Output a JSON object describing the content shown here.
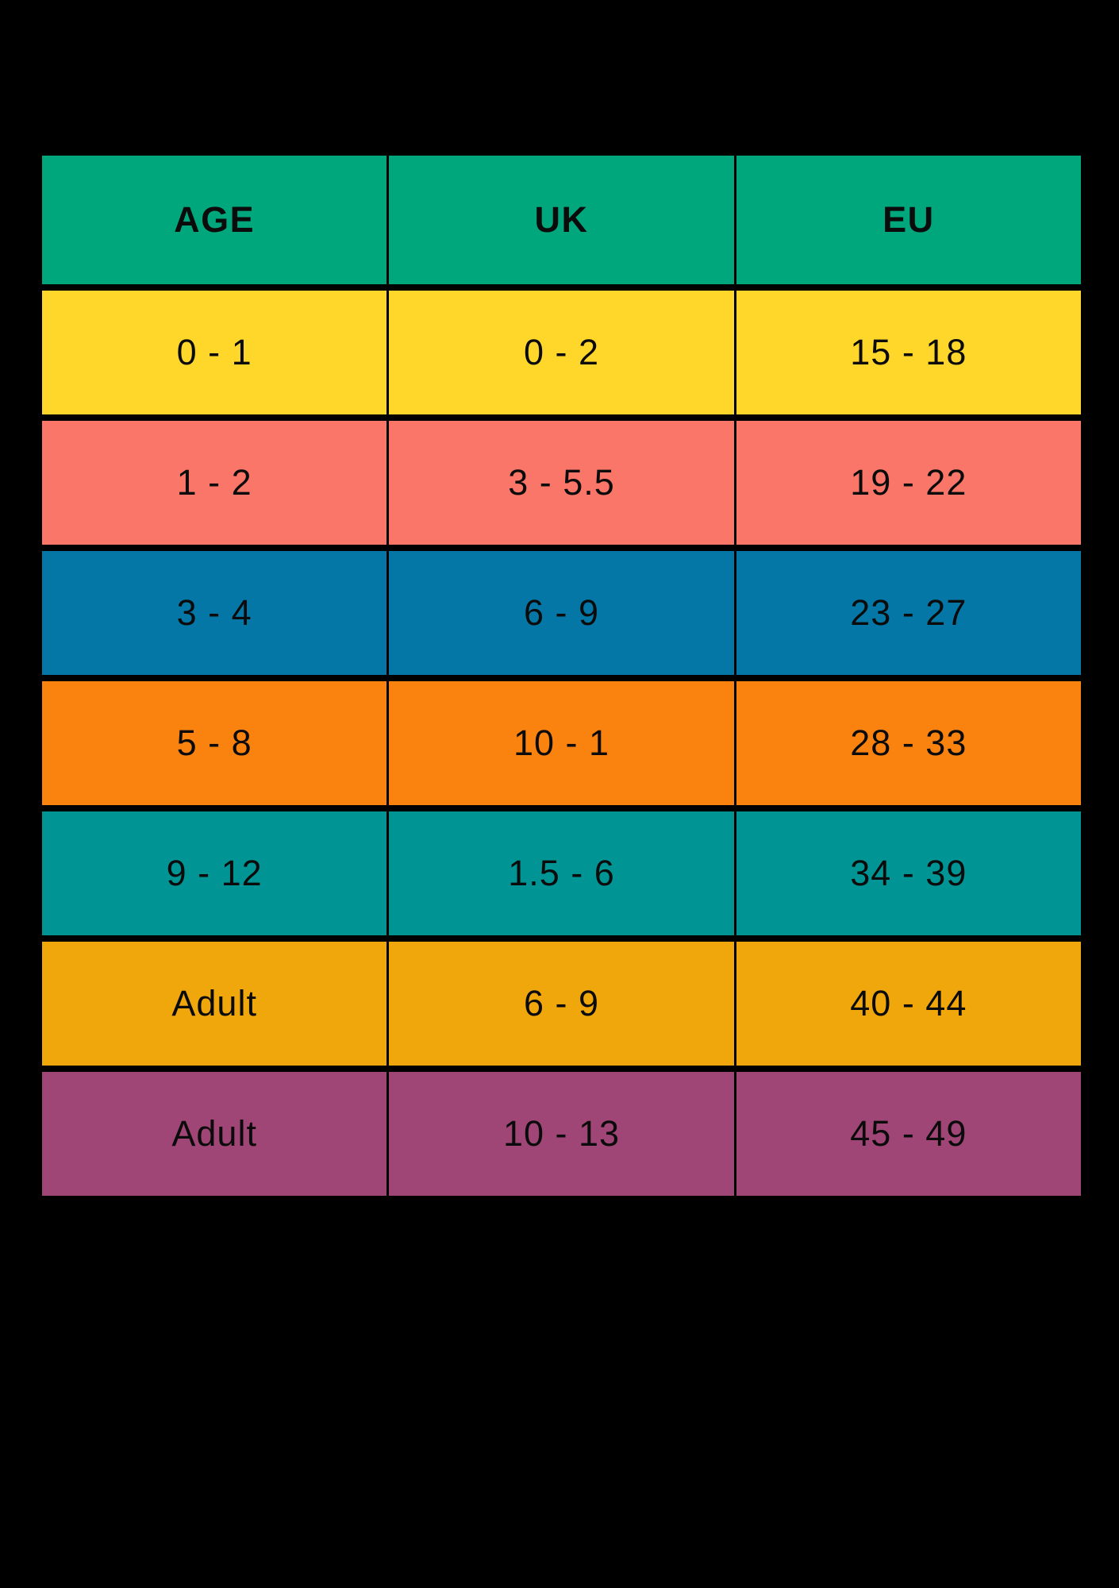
{
  "page": {
    "background_color": "#000000"
  },
  "chart_data": {
    "type": "table",
    "columns": [
      "AGE",
      "UK",
      "EU"
    ],
    "header_color": "#00A77D",
    "text_color": "#0B0B0B",
    "rows": [
      {
        "cells": [
          "0 - 1",
          "0 - 2",
          "15 - 18"
        ],
        "color": "#FFD72B"
      },
      {
        "cells": [
          "1 - 2",
          "3 - 5.5",
          "19 - 22"
        ],
        "color": "#F97668"
      },
      {
        "cells": [
          "3 - 4",
          "6 - 9",
          "23 - 27"
        ],
        "color": "#0577A6"
      },
      {
        "cells": [
          "5 - 8",
          "10 - 1",
          "28 - 33"
        ],
        "color": "#FA8310"
      },
      {
        "cells": [
          "9 - 12",
          "1.5 - 6",
          "34 - 39"
        ],
        "color": "#019495"
      },
      {
        "cells": [
          "Adult",
          "6 - 9",
          "40 - 44"
        ],
        "color": "#F0A70B"
      },
      {
        "cells": [
          "Adult",
          "10 - 13",
          "45 - 49"
        ],
        "color": "#A04677"
      }
    ],
    "layout": {
      "grid": "off",
      "legend": "none"
    }
  }
}
